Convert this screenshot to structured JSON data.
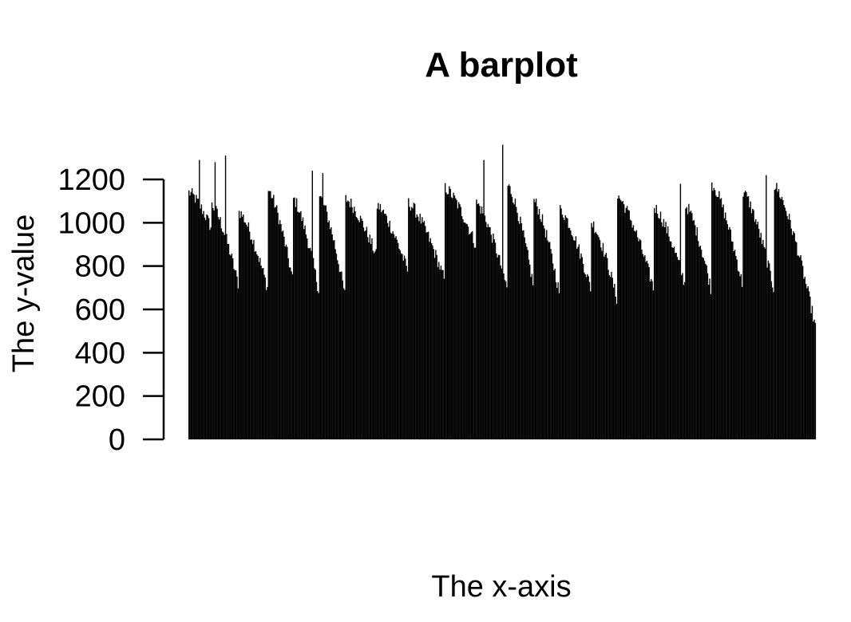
{
  "chart_data": {
    "type": "bar",
    "title": "A barplot",
    "xlabel": "The x-axis",
    "ylabel": "The y-value",
    "ylim": [
      0,
      1300
    ],
    "yticks": [
      0,
      200,
      400,
      600,
      800,
      1000,
      1200
    ],
    "ytick_labels": [
      "0",
      "200",
      "400",
      "600",
      "800",
      "1000",
      "1200"
    ],
    "grid": false,
    "legend": "none",
    "bar_color": "#000000",
    "n_bars": 600,
    "segments": [
      {
        "from": 0,
        "to": 22,
        "start": 1140,
        "end": 980
      },
      {
        "from": 22,
        "to": 48,
        "start": 1080,
        "end": 720
      },
      {
        "from": 48,
        "to": 76,
        "start": 1050,
        "end": 700
      },
      {
        "from": 76,
        "to": 100,
        "start": 1150,
        "end": 740
      },
      {
        "from": 100,
        "to": 125,
        "start": 1110,
        "end": 690
      },
      {
        "from": 125,
        "to": 150,
        "start": 1120,
        "end": 670
      },
      {
        "from": 150,
        "to": 180,
        "start": 1110,
        "end": 850
      },
      {
        "from": 180,
        "to": 210,
        "start": 1080,
        "end": 780
      },
      {
        "from": 210,
        "to": 245,
        "start": 1090,
        "end": 740
      },
      {
        "from": 245,
        "to": 275,
        "start": 1160,
        "end": 900
      },
      {
        "from": 275,
        "to": 305,
        "start": 1090,
        "end": 700
      },
      {
        "from": 305,
        "to": 330,
        "start": 1170,
        "end": 720
      },
      {
        "from": 330,
        "to": 355,
        "start": 1100,
        "end": 680
      },
      {
        "from": 355,
        "to": 385,
        "start": 1060,
        "end": 700
      },
      {
        "from": 385,
        "to": 410,
        "start": 1000,
        "end": 650
      },
      {
        "from": 410,
        "to": 445,
        "start": 1120,
        "end": 700
      },
      {
        "from": 445,
        "to": 475,
        "start": 1070,
        "end": 720
      },
      {
        "from": 475,
        "to": 500,
        "start": 1080,
        "end": 700
      },
      {
        "from": 500,
        "to": 530,
        "start": 1180,
        "end": 720
      },
      {
        "from": 530,
        "to": 560,
        "start": 1140,
        "end": 700
      },
      {
        "from": 560,
        "to": 600,
        "start": 1170,
        "end": 520
      }
    ],
    "spikes": [
      {
        "index": 10,
        "value": 1290
      },
      {
        "index": 25,
        "value": 1280
      },
      {
        "index": 35,
        "value": 1310
      },
      {
        "index": 118,
        "value": 1240
      },
      {
        "index": 128,
        "value": 1230
      },
      {
        "index": 282,
        "value": 1290
      },
      {
        "index": 300,
        "value": 1360
      },
      {
        "index": 470,
        "value": 1180
      },
      {
        "index": 552,
        "value": 1220
      }
    ]
  }
}
